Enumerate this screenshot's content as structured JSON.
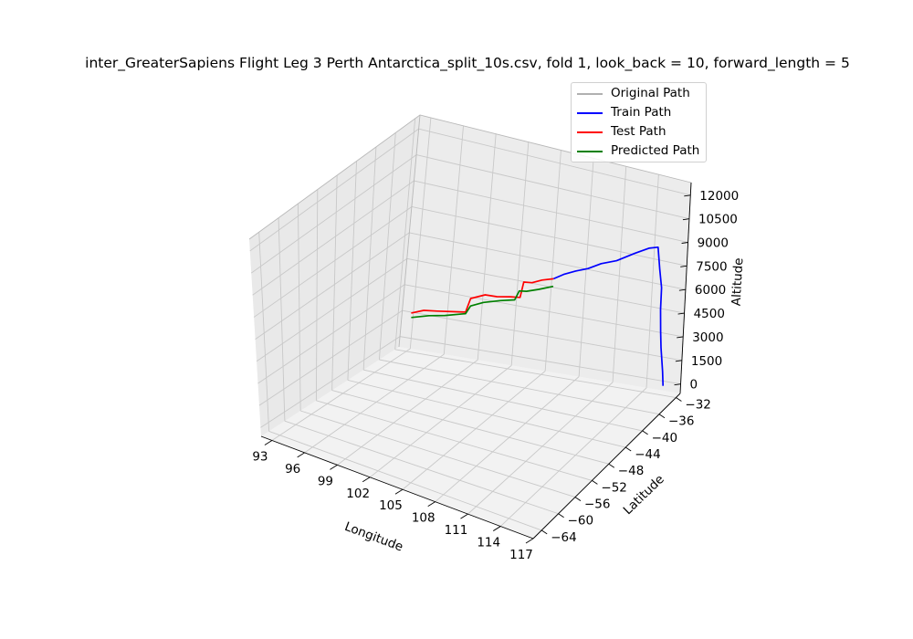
{
  "chart_data": {
    "type": "line",
    "title": "inter_GreaterSapiens Flight Leg 3 Perth Antarctica_split_10s.csv, fold 1, look_back = 10, forward_length = 5",
    "xlabel": "Longitude",
    "ylabel": "Latitude",
    "zlabel": "Altitude",
    "x_ticks": [
      "93",
      "96",
      "99",
      "102",
      "105",
      "108",
      "111",
      "114",
      "117"
    ],
    "y_ticks": [
      "−64",
      "−60",
      "−56",
      "−52",
      "−48",
      "−44",
      "−40",
      "−36",
      "−32"
    ],
    "z_ticks": [
      "0",
      "1500",
      "3000",
      "4500",
      "6000",
      "7500",
      "9000",
      "10500",
      "12000"
    ],
    "xlim": [
      92,
      117
    ],
    "ylim": [
      -66,
      -31
    ],
    "zlim": [
      -600,
      12800
    ],
    "grid": true,
    "legend_position": "top-right",
    "series": [
      {
        "name": "Original Path",
        "color": "#b0b0b0",
        "points": []
      },
      {
        "name": "Train Path",
        "color": "#0000ff",
        "points": [
          [
            115.8,
            -32.0,
            0
          ],
          [
            115.8,
            -32.3,
            1000
          ],
          [
            115.7,
            -32.7,
            2600
          ],
          [
            115.7,
            -33.0,
            3700
          ],
          [
            115.7,
            -33.3,
            5200
          ],
          [
            115.8,
            -33.6,
            6700
          ],
          [
            115.7,
            -34.0,
            8000
          ],
          [
            115.6,
            -34.4,
            9500
          ],
          [
            115.2,
            -35.5,
            9700
          ],
          [
            114.5,
            -37.0,
            9700
          ],
          [
            113.6,
            -38.8,
            9600
          ],
          [
            112.8,
            -40.3,
            9700
          ],
          [
            112.1,
            -41.5,
            9600
          ],
          [
            111.5,
            -42.8,
            9700
          ],
          [
            110.9,
            -44.0,
            9700
          ],
          [
            110.4,
            -45.0,
            9600
          ]
        ]
      },
      {
        "name": "Test Path",
        "color": "#ff0000",
        "points": [
          [
            110.4,
            -45.0,
            9600
          ],
          [
            109.8,
            -46.1,
            9700
          ],
          [
            109.3,
            -47.1,
            9700
          ],
          [
            108.8,
            -47.7,
            9800
          ],
          [
            108.7,
            -48.2,
            8900
          ],
          [
            108.1,
            -48.9,
            9000
          ],
          [
            107.3,
            -49.9,
            9100
          ],
          [
            106.6,
            -50.8,
            9300
          ],
          [
            105.9,
            -52.3,
            9300
          ],
          [
            105.7,
            -52.9,
            8500
          ],
          [
            104.9,
            -53.9,
            8600
          ],
          [
            104.0,
            -55.0,
            8700
          ],
          [
            103.2,
            -56.0,
            8800
          ],
          [
            102.6,
            -57.3,
            8800
          ]
        ]
      },
      {
        "name": "Predicted Path",
        "color": "#008000",
        "points": [
          [
            110.4,
            -45.0,
            9100
          ],
          [
            109.6,
            -46.3,
            9100
          ],
          [
            108.9,
            -47.3,
            9100
          ],
          [
            108.5,
            -47.9,
            9200
          ],
          [
            108.3,
            -48.4,
            8700
          ],
          [
            107.5,
            -49.6,
            8800
          ],
          [
            106.5,
            -50.9,
            8800
          ],
          [
            105.9,
            -52.3,
            8800
          ],
          [
            105.7,
            -52.9,
            8400
          ],
          [
            104.5,
            -54.5,
            8400
          ],
          [
            103.6,
            -55.8,
            8500
          ],
          [
            102.6,
            -57.3,
            8500
          ]
        ]
      }
    ]
  }
}
